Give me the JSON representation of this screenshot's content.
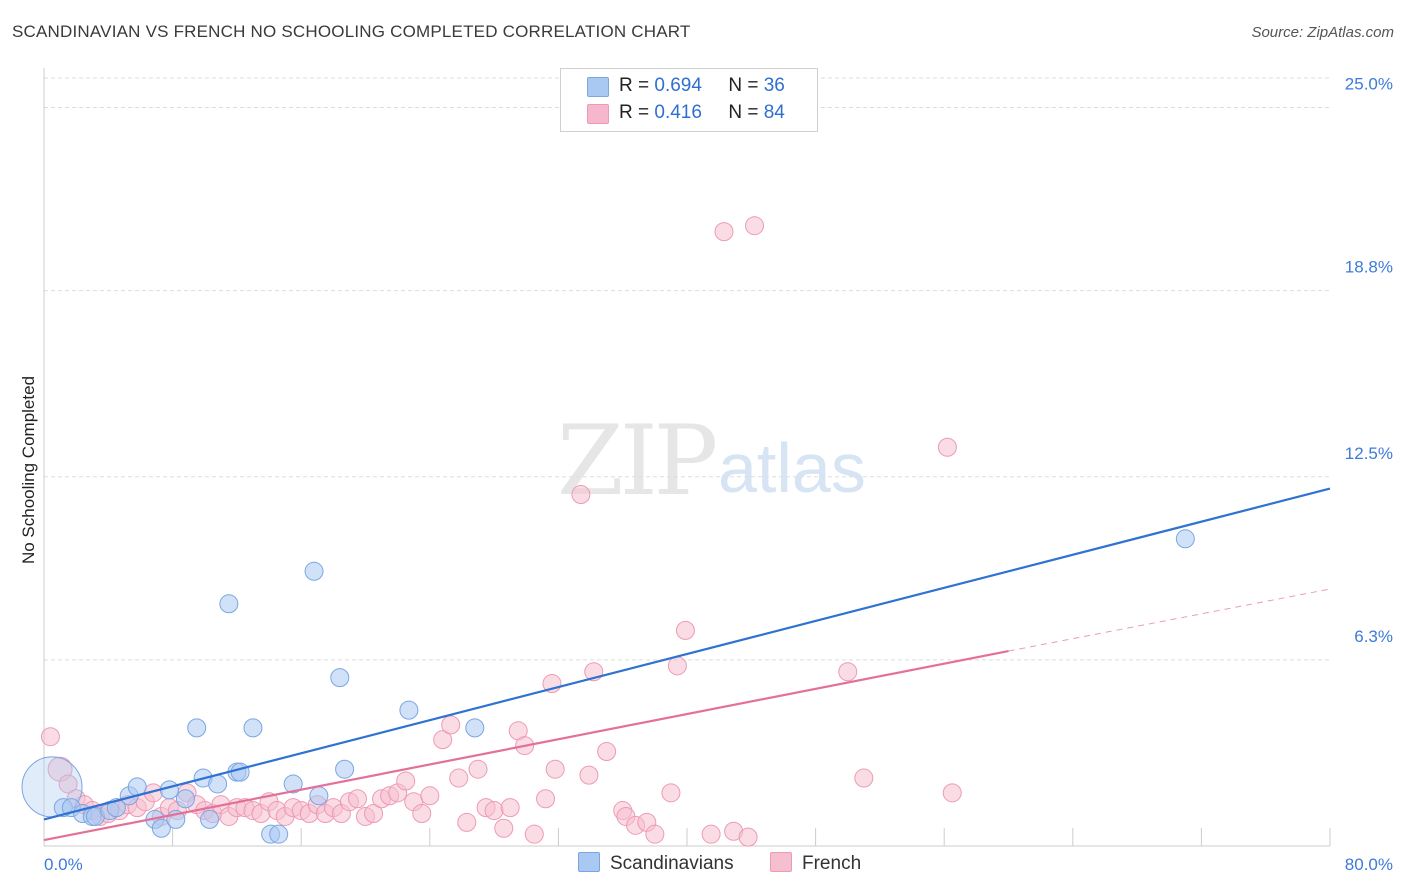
{
  "header": {
    "title": "SCANDINAVIAN VS FRENCH NO SCHOOLING COMPLETED CORRELATION CHART",
    "source": "Source: ZipAtlas.com"
  },
  "watermark": {
    "zip": "ZIP",
    "atlas": "atlas"
  },
  "legend": {
    "rows": [
      {
        "r_label": "R =",
        "r_value": "0.694",
        "n_label": "N =",
        "n_value": "36",
        "color": "#a9c8f2"
      },
      {
        "r_label": "R =",
        "r_value": "0.416",
        "n_label": "N =",
        "n_value": "84",
        "color": "#f6b6cb"
      }
    ]
  },
  "bottom_legend": {
    "series1": "Scandinavians",
    "series2": "French"
  },
  "colors": {
    "blue_fill": "#a9c8f2",
    "blue_stroke": "#7aa6e3",
    "blue_line": "#2f72d1",
    "pink_fill": "#f6bfd0",
    "pink_stroke": "#ee9ab5",
    "pink_line": "#e4709a",
    "grid": "#dddddd",
    "axis_text": "#3d7bd9"
  },
  "chart_data": {
    "type": "scatter",
    "title": "SCANDINAVIAN VS FRENCH NO SCHOOLING COMPLETED CORRELATION CHART",
    "xlabel": "",
    "ylabel": "No Schooling Completed",
    "xlim": [
      0,
      80
    ],
    "ylim": [
      0,
      26
    ],
    "x_tick_labels": [
      "0.0%",
      "80.0%"
    ],
    "y_ticks": [
      6.3,
      12.5,
      18.8,
      25.0
    ],
    "y_tick_labels": [
      "6.3%",
      "12.5%",
      "18.8%",
      "25.0%"
    ],
    "series": [
      {
        "name": "Scandinavians",
        "R": 0.694,
        "N": 36,
        "trend": {
          "x": [
            0,
            80
          ],
          "y": [
            0.9,
            12.1
          ]
        },
        "points": [
          [
            0.5,
            2.0,
            30
          ],
          [
            1.2,
            1.3,
            9
          ],
          [
            1.7,
            1.3,
            9
          ],
          [
            2.4,
            1.1,
            9
          ],
          [
            3.0,
            1.0,
            9
          ],
          [
            3.2,
            1.0,
            9
          ],
          [
            4.1,
            1.2,
            9
          ],
          [
            4.5,
            1.3,
            9
          ],
          [
            5.3,
            1.7,
            9
          ],
          [
            5.8,
            2.0,
            9
          ],
          [
            6.9,
            0.9,
            9
          ],
          [
            7.3,
            0.6,
            9
          ],
          [
            7.8,
            1.9,
            9
          ],
          [
            8.2,
            0.9,
            9
          ],
          [
            8.8,
            1.6,
            9
          ],
          [
            9.5,
            4.0,
            9
          ],
          [
            9.9,
            2.3,
            9
          ],
          [
            10.3,
            0.9,
            9
          ],
          [
            10.8,
            2.1,
            9
          ],
          [
            11.5,
            8.2,
            9
          ],
          [
            12.0,
            2.5,
            9
          ],
          [
            12.2,
            2.5,
            9
          ],
          [
            13.0,
            4.0,
            9
          ],
          [
            14.1,
            0.4,
            9
          ],
          [
            14.6,
            0.4,
            9
          ],
          [
            15.5,
            2.1,
            9
          ],
          [
            16.8,
            9.3,
            9
          ],
          [
            17.1,
            1.7,
            9
          ],
          [
            18.4,
            5.7,
            9
          ],
          [
            18.7,
            2.6,
            9
          ],
          [
            22.7,
            4.6,
            9
          ],
          [
            26.8,
            4.0,
            9
          ],
          [
            71.0,
            10.4,
            9
          ]
        ]
      },
      {
        "name": "French",
        "R": 0.416,
        "N": 84,
        "trend": {
          "x": [
            0,
            60
          ],
          "y": [
            0.2,
            6.6
          ]
        },
        "trend_dashed": {
          "x": [
            60,
            80
          ],
          "y": [
            6.6,
            8.7
          ]
        },
        "points": [
          [
            0.4,
            3.7,
            9
          ],
          [
            1.0,
            2.6,
            12
          ],
          [
            1.5,
            2.1,
            9
          ],
          [
            2.0,
            1.6,
            9
          ],
          [
            2.5,
            1.4,
            9
          ],
          [
            3.0,
            1.2,
            9
          ],
          [
            3.5,
            1.0,
            9
          ],
          [
            4.0,
            1.1,
            9
          ],
          [
            4.7,
            1.2,
            9
          ],
          [
            5.2,
            1.4,
            9
          ],
          [
            5.8,
            1.3,
            9
          ],
          [
            6.3,
            1.5,
            9
          ],
          [
            6.8,
            1.8,
            9
          ],
          [
            7.3,
            1.0,
            9
          ],
          [
            7.8,
            1.3,
            9
          ],
          [
            8.3,
            1.2,
            9
          ],
          [
            8.9,
            1.8,
            9
          ],
          [
            9.5,
            1.4,
            9
          ],
          [
            10.0,
            1.2,
            9
          ],
          [
            10.5,
            1.1,
            9
          ],
          [
            11.0,
            1.4,
            9
          ],
          [
            11.5,
            1.0,
            9
          ],
          [
            12.0,
            1.3,
            9
          ],
          [
            12.5,
            1.3,
            9
          ],
          [
            13.0,
            1.2,
            9
          ],
          [
            13.5,
            1.1,
            9
          ],
          [
            14.0,
            1.5,
            9
          ],
          [
            14.5,
            1.2,
            9
          ],
          [
            15.0,
            1.0,
            9
          ],
          [
            15.5,
            1.3,
            9
          ],
          [
            16.0,
            1.2,
            9
          ],
          [
            16.5,
            1.1,
            9
          ],
          [
            17.0,
            1.4,
            9
          ],
          [
            17.5,
            1.1,
            9
          ],
          [
            18.0,
            1.3,
            9
          ],
          [
            18.5,
            1.1,
            9
          ],
          [
            19.0,
            1.5,
            9
          ],
          [
            19.5,
            1.6,
            9
          ],
          [
            20.0,
            1.0,
            9
          ],
          [
            20.5,
            1.1,
            9
          ],
          [
            21.0,
            1.6,
            9
          ],
          [
            21.5,
            1.7,
            9
          ],
          [
            22.0,
            1.8,
            9
          ],
          [
            22.5,
            2.2,
            9
          ],
          [
            23.0,
            1.5,
            9
          ],
          [
            23.5,
            1.1,
            9
          ],
          [
            24.0,
            1.7,
            9
          ],
          [
            24.8,
            3.6,
            9
          ],
          [
            25.3,
            4.1,
            9
          ],
          [
            25.8,
            2.3,
            9
          ],
          [
            26.3,
            0.8,
            9
          ],
          [
            27.0,
            2.6,
            9
          ],
          [
            27.5,
            1.3,
            9
          ],
          [
            28.0,
            1.2,
            9
          ],
          [
            28.6,
            0.6,
            9
          ],
          [
            29.0,
            1.3,
            9
          ],
          [
            29.5,
            3.9,
            9
          ],
          [
            29.9,
            3.4,
            9
          ],
          [
            30.5,
            0.4,
            9
          ],
          [
            31.2,
            1.6,
            9
          ],
          [
            31.6,
            5.5,
            9
          ],
          [
            31.8,
            2.6,
            9
          ],
          [
            33.4,
            11.9,
            9
          ],
          [
            33.9,
            2.4,
            9
          ],
          [
            34.2,
            5.9,
            9
          ],
          [
            35.0,
            3.2,
            9
          ],
          [
            36.0,
            1.2,
            9
          ],
          [
            36.2,
            1.0,
            9
          ],
          [
            36.8,
            0.7,
            9
          ],
          [
            37.5,
            0.8,
            9
          ],
          [
            38.0,
            0.4,
            9
          ],
          [
            39.0,
            1.8,
            9
          ],
          [
            39.4,
            6.1,
            9
          ],
          [
            39.9,
            7.3,
            9
          ],
          [
            41.5,
            0.4,
            9
          ],
          [
            42.3,
            20.8,
            9
          ],
          [
            42.9,
            0.5,
            9
          ],
          [
            43.8,
            0.3,
            9
          ],
          [
            44.2,
            21.0,
            9
          ],
          [
            50.0,
            5.9,
            9
          ],
          [
            51.0,
            2.3,
            9
          ],
          [
            56.2,
            13.5,
            9
          ],
          [
            56.5,
            1.8,
            9
          ]
        ]
      }
    ]
  }
}
